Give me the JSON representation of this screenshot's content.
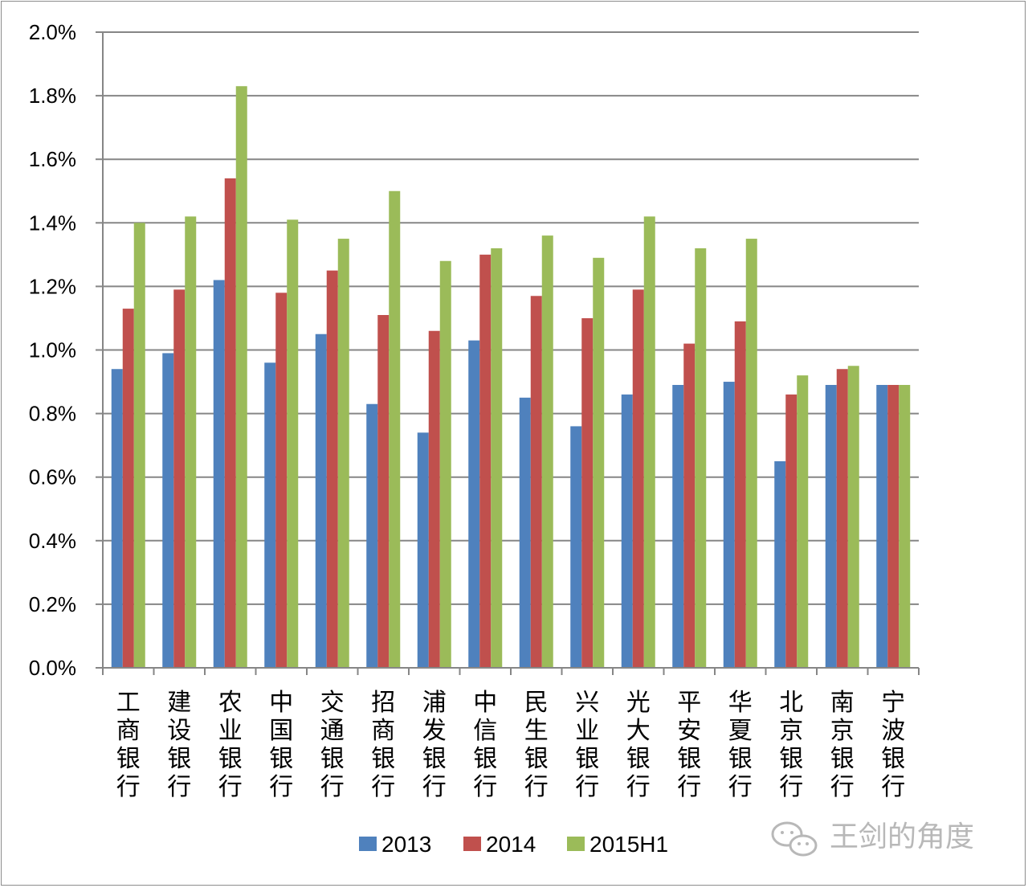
{
  "chart_data": {
    "type": "bar",
    "categories": [
      "工商银行",
      "建设银行",
      "农业银行",
      "中国银行",
      "交通银行",
      "招商银行",
      "浦发银行",
      "中信银行",
      "民生银行",
      "兴业银行",
      "光大银行",
      "平安银行",
      "华夏银行",
      "北京银行",
      "南京银行",
      "宁波银行"
    ],
    "series": [
      {
        "name": "2013",
        "color": "#4f81bd",
        "values": [
          0.94,
          0.99,
          1.22,
          0.96,
          1.05,
          0.83,
          0.74,
          1.03,
          0.85,
          0.76,
          0.86,
          0.89,
          0.9,
          0.65,
          0.89,
          0.89
        ]
      },
      {
        "name": "2014",
        "color": "#c0504d",
        "values": [
          1.13,
          1.19,
          1.54,
          1.18,
          1.25,
          1.11,
          1.06,
          1.3,
          1.17,
          1.1,
          1.19,
          1.02,
          1.09,
          0.86,
          0.94,
          0.89
        ]
      },
      {
        "name": "2015H1",
        "color": "#9bbb59",
        "values": [
          1.4,
          1.42,
          1.83,
          1.41,
          1.35,
          1.5,
          1.28,
          1.32,
          1.36,
          1.29,
          1.42,
          1.32,
          1.35,
          0.92,
          0.95,
          0.89
        ]
      }
    ],
    "yticks": [
      "0.0%",
      "0.2%",
      "0.4%",
      "0.6%",
      "0.8%",
      "1.0%",
      "1.2%",
      "1.4%",
      "1.6%",
      "1.8%",
      "2.0%"
    ],
    "ylim": [
      0,
      2.0
    ],
    "grid": true,
    "legend": "bottom",
    "title": "",
    "xlabel": "",
    "ylabel": ""
  },
  "watermark": {
    "text": "王剑的角度",
    "icon": "wechat-icon"
  }
}
